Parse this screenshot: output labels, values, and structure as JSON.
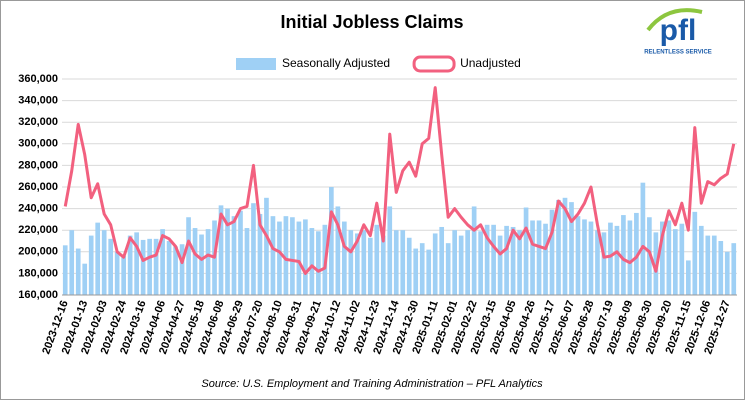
{
  "chart_data": {
    "type": "bar_line",
    "title": "Initial Jobless Claims",
    "source": "Source: U.S. Employment and Training Administration – PFL Analytics",
    "logo": {
      "text": "pfl",
      "tagline": "RELENTLESS SERVICE"
    },
    "categories": [
      "2023-12-16",
      null,
      null,
      "2024-01-13",
      null,
      null,
      "2024-02-03",
      null,
      null,
      "2024-02-24",
      null,
      null,
      "2024-03-16",
      null,
      null,
      "2024-04-06",
      null,
      null,
      "2024-04-27",
      null,
      null,
      "2024-05-18",
      null,
      null,
      "2024-06-08",
      null,
      null,
      "2024-06-29",
      null,
      null,
      "2024-07-20",
      null,
      null,
      "2024-08-10",
      null,
      null,
      "2024-08-31",
      null,
      null,
      "2024-09-21",
      null,
      null,
      "2024-10-12",
      null,
      null,
      "2024-11-02",
      null,
      null,
      "2024-11-23",
      null,
      null,
      "2024-12-14",
      null,
      null,
      "2024-12-30",
      null,
      null,
      "2025-01-11",
      null,
      null,
      "2025-02-01",
      null,
      null,
      "2025-02-22",
      null,
      null,
      "2025-03-15",
      null,
      null,
      "2025-04-05",
      null,
      null,
      "2025-04-26",
      null,
      null,
      "2025-05-17",
      null,
      null,
      "2025-06-07",
      null,
      null,
      "2025-06-28",
      null,
      null,
      "2025-07-19",
      null,
      null,
      "2025-08-09",
      null,
      null,
      "2025-08-30",
      null,
      null,
      "2025-09-20",
      null,
      null,
      "2025-11-15",
      null,
      null,
      "2025-12-06",
      null,
      null,
      "2025-12-27",
      null
    ],
    "series": [
      {
        "name": "Seasonally Adjusted",
        "type": "bar",
        "color": "#9fd0f5",
        "values": [
          206000,
          220000,
          203000,
          189000,
          215000,
          227000,
          220000,
          212000,
          200000,
          196000,
          215000,
          218000,
          211000,
          212000,
          212000,
          221000,
          210000,
          205000,
          207000,
          232000,
          222000,
          216000,
          221000,
          229000,
          243000,
          240000,
          233000,
          238000,
          222000,
          245000,
          235000,
          250000,
          233000,
          228000,
          233000,
          232000,
          228000,
          230000,
          222000,
          219000,
          225000,
          260000,
          242000,
          228000,
          220000,
          217000,
          220000,
          213000,
          225000,
          215000,
          242000,
          220000,
          220000,
          213000,
          203000,
          208000,
          202000,
          217000,
          223000,
          208000,
          220000,
          215000,
          220000,
          242000,
          219000,
          225000,
          225000,
          215000,
          224000,
          223000,
          220000,
          241000,
          229000,
          229000,
          226000,
          239000,
          248000,
          250000,
          246000,
          233000,
          230000,
          228000,
          220000,
          218000,
          227000,
          224000,
          234000,
          229000,
          236000,
          264000,
          232000,
          218000,
          228000,
          229000,
          221000,
          226000,
          192000,
          237000,
          224000,
          215000,
          215000,
          210000,
          200000,
          208000
        ]
      },
      {
        "name": "Unadjusted",
        "type": "line",
        "color": "#f2607f",
        "values": [
          242000,
          275000,
          318000,
          290000,
          250000,
          263000,
          235000,
          225000,
          200000,
          195000,
          213000,
          205000,
          192000,
          195000,
          197000,
          215000,
          212000,
          205000,
          190000,
          210000,
          198000,
          193000,
          197000,
          195000,
          235000,
          225000,
          228000,
          240000,
          242000,
          280000,
          225000,
          215000,
          203000,
          200000,
          193000,
          192000,
          191000,
          180000,
          187000,
          182000,
          185000,
          237000,
          225000,
          205000,
          200000,
          210000,
          225000,
          215000,
          245000,
          210000,
          309000,
          255000,
          275000,
          283000,
          270000,
          300000,
          305000,
          352000,
          290000,
          232000,
          240000,
          232000,
          225000,
          220000,
          225000,
          213000,
          205000,
          198000,
          203000,
          220000,
          212000,
          222000,
          207000,
          205000,
          203000,
          218000,
          247000,
          240000,
          228000,
          235000,
          245000,
          260000,
          225000,
          195000,
          196000,
          200000,
          193000,
          190000,
          195000,
          205000,
          200000,
          182000,
          215000,
          238000,
          225000,
          245000,
          220000,
          315000,
          245000,
          265000,
          262000,
          268000,
          272000,
          300000
        ]
      }
    ],
    "ylim": [
      160000,
      360000
    ],
    "yticks": [
      {
        "value": 160000,
        "label": "160,000"
      },
      {
        "value": 180000,
        "label": "180,000"
      },
      {
        "value": 200000,
        "label": "200,000"
      },
      {
        "value": 220000,
        "label": "220,000"
      },
      {
        "value": 240000,
        "label": "240,000"
      },
      {
        "value": 260000,
        "label": "260,000"
      },
      {
        "value": 280000,
        "label": "280,000"
      },
      {
        "value": 300000,
        "label": "300,000"
      },
      {
        "value": 320000,
        "label": "320,000"
      },
      {
        "value": 340000,
        "label": "340,000"
      },
      {
        "value": 360000,
        "label": "360,000"
      }
    ],
    "grid": true,
    "legend": "top"
  }
}
